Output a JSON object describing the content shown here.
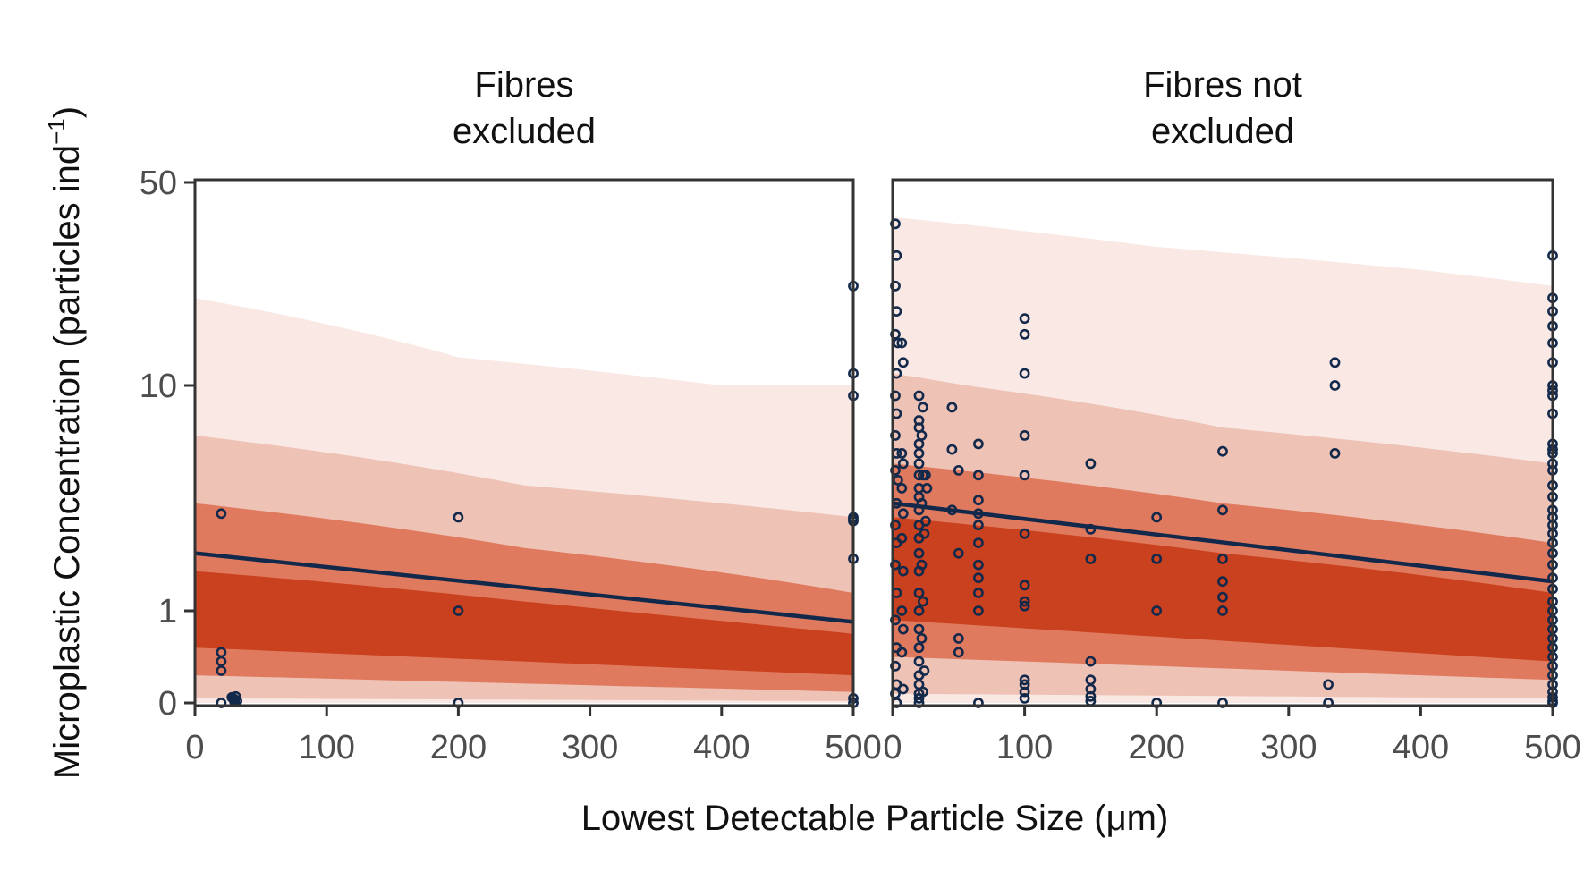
{
  "chart_data": {
    "type": "scatter",
    "xlabel": "Lowest Detectable Particle Size (μm)",
    "ylabel_main": "Microplastic Concentration (particles ind",
    "ylabel_sup": "−1",
    "ylabel_end": ")",
    "y_scale": "pseudo-log",
    "y_ticks": [
      0,
      1,
      10,
      50
    ],
    "y_tick_labels": [
      "0",
      "1",
      "10",
      "50"
    ],
    "x_ticks": [
      0,
      100,
      200,
      300,
      400,
      500
    ],
    "x_tick_labels": [
      "0",
      "100",
      "200",
      "300",
      "400",
      "500"
    ],
    "ylim": [
      0,
      50
    ],
    "xlim": [
      0,
      500
    ],
    "colors": {
      "points": "#13294b",
      "fit_line": "#13294b",
      "band_outer": "#f9e8e4",
      "band_2": "#eec2b5",
      "band_3": "#df7a5f",
      "band_inner": "#c9411e",
      "frame": "#333333"
    },
    "panels": [
      {
        "title_line1": "Fibres",
        "title_line2": "excluded",
        "fit": [
          [
            0,
            1.8
          ],
          [
            500,
            0.88
          ]
        ],
        "bands": {
          "outer": {
            "lower": [
              [
                0,
                0
              ],
              [
                500,
                0
              ]
            ],
            "upper": [
              [
                0,
                20
              ],
              [
                200,
                12.5
              ],
              [
                400,
                10
              ],
              [
                500,
                10
              ]
            ]
          },
          "b2": {
            "lower": [
              [
                0,
                0.05
              ],
              [
                500,
                0.02
              ]
            ],
            "upper": [
              [
                0,
                6
              ],
              [
                250,
                3.6
              ],
              [
                500,
                2.6
              ]
            ]
          },
          "b3": {
            "lower": [
              [
                0,
                0.3
              ],
              [
                500,
                0.12
              ]
            ],
            "upper": [
              [
                0,
                3
              ],
              [
                250,
                1.9
              ],
              [
                500,
                1.2
              ]
            ]
          },
          "inner": {
            "lower": [
              [
                0,
                0.6
              ],
              [
                500,
                0.3
              ]
            ],
            "upper": [
              [
                0,
                1.5
              ],
              [
                250,
                1.1
              ],
              [
                500,
                0.75
              ]
            ]
          }
        },
        "points": [
          [
            20,
            2.7
          ],
          [
            20,
            0.55
          ],
          [
            20,
            0.45
          ],
          [
            20,
            0.35
          ],
          [
            20,
            0.0
          ],
          [
            28,
            0.06
          ],
          [
            30,
            0.04
          ],
          [
            30,
            0.03
          ],
          [
            32,
            0.02
          ],
          [
            29,
            0.05
          ],
          [
            31,
            0.07
          ],
          [
            30,
            0.01
          ],
          [
            200,
            2.6
          ],
          [
            200,
            1.0
          ],
          [
            200,
            0.0
          ],
          [
            500,
            22
          ],
          [
            500,
            11
          ],
          [
            500,
            9
          ],
          [
            500,
            2.6
          ],
          [
            500,
            2.55
          ],
          [
            500,
            2.5
          ],
          [
            500,
            1.7
          ],
          [
            500,
            0.05
          ],
          [
            500,
            0.0
          ]
        ]
      },
      {
        "title_line1": "Fibres not",
        "title_line2": "excluded",
        "fit": [
          [
            0,
            3.0
          ],
          [
            500,
            1.35
          ]
        ],
        "bands": {
          "outer": {
            "lower": [
              [
                0,
                0
              ],
              [
                500,
                0
              ]
            ],
            "upper": [
              [
                0,
                38
              ],
              [
                200,
                30
              ],
              [
                400,
                25
              ],
              [
                500,
                22
              ]
            ]
          },
          "b2": {
            "lower": [
              [
                0,
                0.1
              ],
              [
                500,
                0.05
              ]
            ],
            "upper": [
              [
                0,
                11
              ],
              [
                250,
                6.5
              ],
              [
                500,
                4.5
              ]
            ]
          },
          "b3": {
            "lower": [
              [
                0,
                0.5
              ],
              [
                500,
                0.25
              ]
            ],
            "upper": [
              [
                0,
                4.5
              ],
              [
                250,
                3.0
              ],
              [
                500,
                2.0
              ]
            ]
          },
          "inner": {
            "lower": [
              [
                0,
                0.9
              ],
              [
                500,
                0.45
              ]
            ],
            "upper": [
              [
                0,
                2.6
              ],
              [
                250,
                1.8
              ],
              [
                500,
                1.2
              ]
            ]
          }
        },
        "points": [
          [
            2,
            36
          ],
          [
            3,
            28
          ],
          [
            2,
            22
          ],
          [
            3,
            18
          ],
          [
            2,
            15
          ],
          [
            4,
            14
          ],
          [
            3,
            11
          ],
          [
            2,
            9
          ],
          [
            3,
            7.5
          ],
          [
            2,
            6
          ],
          [
            3,
            5
          ],
          [
            2,
            4.2
          ],
          [
            4,
            3.8
          ],
          [
            3,
            3.0
          ],
          [
            2,
            2.4
          ],
          [
            3,
            2.0
          ],
          [
            2,
            1.6
          ],
          [
            3,
            1.2
          ],
          [
            2,
            0.9
          ],
          [
            3,
            0.6
          ],
          [
            2,
            0.4
          ],
          [
            3,
            0.2
          ],
          [
            2,
            0.1
          ],
          [
            3,
            0.0
          ],
          [
            7,
            14
          ],
          [
            8,
            12
          ],
          [
            7,
            5
          ],
          [
            8,
            4.5
          ],
          [
            7,
            3.5
          ],
          [
            8,
            2.7
          ],
          [
            7,
            2.1
          ],
          [
            8,
            1.5
          ],
          [
            7,
            1.0
          ],
          [
            8,
            0.8
          ],
          [
            7,
            0.55
          ],
          [
            8,
            0.15
          ],
          [
            20,
            9
          ],
          [
            20,
            7
          ],
          [
            20,
            6.5
          ],
          [
            20,
            5.5
          ],
          [
            20,
            5
          ],
          [
            20,
            4.5
          ],
          [
            20,
            4
          ],
          [
            20,
            3.5
          ],
          [
            20,
            3.2
          ],
          [
            20,
            2.8
          ],
          [
            20,
            2.4
          ],
          [
            20,
            2.1
          ],
          [
            20,
            1.8
          ],
          [
            20,
            1.5
          ],
          [
            20,
            1.2
          ],
          [
            20,
            1.0
          ],
          [
            20,
            0.8
          ],
          [
            20,
            0.6
          ],
          [
            20,
            0.45
          ],
          [
            20,
            0.3
          ],
          [
            20,
            0.2
          ],
          [
            20,
            0.1
          ],
          [
            20,
            0.05
          ],
          [
            20,
            0.0
          ],
          [
            23,
            8
          ],
          [
            22,
            6
          ],
          [
            23,
            4
          ],
          [
            22,
            3
          ],
          [
            24,
            2.2
          ],
          [
            22,
            1.6
          ],
          [
            23,
            1.1
          ],
          [
            22,
            0.7
          ],
          [
            24,
            0.35
          ],
          [
            23,
            0.12
          ],
          [
            25,
            4
          ],
          [
            26,
            3.5
          ],
          [
            25,
            2.5
          ],
          [
            45,
            8
          ],
          [
            45,
            5.2
          ],
          [
            50,
            4.2
          ],
          [
            50,
            1.8
          ],
          [
            50,
            0.7
          ],
          [
            50,
            0.55
          ],
          [
            45,
            2.8
          ],
          [
            65,
            5.5
          ],
          [
            65,
            4
          ],
          [
            65,
            3.1
          ],
          [
            65,
            2.7
          ],
          [
            65,
            2.4
          ],
          [
            65,
            2.0
          ],
          [
            65,
            1.6
          ],
          [
            65,
            1.4
          ],
          [
            65,
            1.2
          ],
          [
            65,
            1.0
          ],
          [
            65,
            0.0
          ],
          [
            100,
            17
          ],
          [
            100,
            15
          ],
          [
            100,
            11
          ],
          [
            100,
            6
          ],
          [
            100,
            4
          ],
          [
            100,
            2.2
          ],
          [
            100,
            1.3
          ],
          [
            100,
            1.1
          ],
          [
            100,
            1.05
          ],
          [
            100,
            0.25
          ],
          [
            100,
            0.2
          ],
          [
            100,
            0.12
          ],
          [
            100,
            0.05
          ],
          [
            150,
            4.5
          ],
          [
            150,
            2.3
          ],
          [
            150,
            1.7
          ],
          [
            150,
            0.45
          ],
          [
            150,
            0.25
          ],
          [
            150,
            0.15
          ],
          [
            150,
            0.07
          ],
          [
            150,
            0.02
          ],
          [
            200,
            2.6
          ],
          [
            200,
            1.7
          ],
          [
            200,
            1.0
          ],
          [
            200,
            0.0
          ],
          [
            250,
            5.1
          ],
          [
            250,
            2.8
          ],
          [
            250,
            1.7
          ],
          [
            250,
            1.35
          ],
          [
            250,
            1.15
          ],
          [
            250,
            1.0
          ],
          [
            250,
            0.0
          ],
          [
            330,
            0.2
          ],
          [
            330,
            0.0
          ],
          [
            335,
            12
          ],
          [
            335,
            10
          ],
          [
            335,
            5
          ],
          [
            500,
            28
          ],
          [
            500,
            20
          ],
          [
            500,
            18
          ],
          [
            500,
            16
          ],
          [
            500,
            14
          ],
          [
            500,
            12
          ],
          [
            500,
            10
          ],
          [
            500,
            9.5
          ],
          [
            500,
            9
          ],
          [
            500,
            7.5
          ],
          [
            500,
            5.5
          ],
          [
            500,
            5.2
          ],
          [
            500,
            5.0
          ],
          [
            500,
            4.5
          ],
          [
            500,
            4.2
          ],
          [
            500,
            3.6
          ],
          [
            500,
            3.2
          ],
          [
            500,
            2.8
          ],
          [
            500,
            2.6
          ],
          [
            500,
            2.4
          ],
          [
            500,
            2.2
          ],
          [
            500,
            2.0
          ],
          [
            500,
            1.8
          ],
          [
            500,
            1.6
          ],
          [
            500,
            1.4
          ],
          [
            500,
            1.25
          ],
          [
            500,
            1.1
          ],
          [
            500,
            1.0
          ],
          [
            500,
            0.9
          ],
          [
            500,
            0.8
          ],
          [
            500,
            0.7
          ],
          [
            500,
            0.6
          ],
          [
            500,
            0.5
          ],
          [
            500,
            0.4
          ],
          [
            500,
            0.3
          ],
          [
            500,
            0.2
          ],
          [
            500,
            0.12
          ],
          [
            500,
            0.06
          ],
          [
            500,
            0.02
          ],
          [
            500,
            0.0
          ]
        ]
      }
    ]
  }
}
